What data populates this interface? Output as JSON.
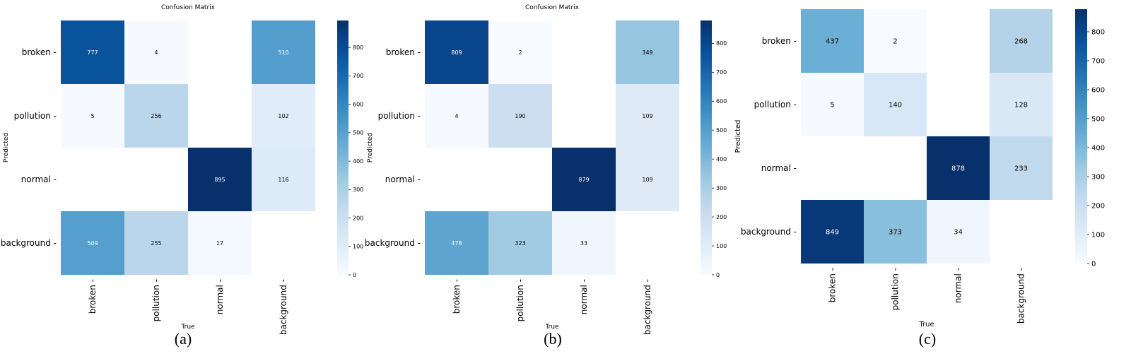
{
  "colors": {
    "low": "#f7fbff",
    "high": "#08306b",
    "empty": "#ffffff",
    "text_dark": "#000000",
    "text_light": "#ffffff"
  },
  "chart_data": [
    {
      "type": "heatmap",
      "title": "Confusion Matrix",
      "caption": "(a)",
      "xlabel": "True",
      "ylabel": "Predicted",
      "categories_x": [
        "broken",
        "pollution",
        "normal",
        "background"
      ],
      "categories_y": [
        "broken",
        "pollution",
        "normal",
        "background"
      ],
      "values": [
        [
          777,
          4,
          null,
          510
        ],
        [
          5,
          256,
          null,
          102
        ],
        [
          null,
          null,
          895,
          116
        ],
        [
          509,
          255,
          17,
          null
        ]
      ],
      "colorbar": {
        "min": 0,
        "max": 895,
        "ticks": [
          0,
          100,
          200,
          300,
          400,
          500,
          600,
          700,
          800
        ]
      }
    },
    {
      "type": "heatmap",
      "title": "Confusion Matrix",
      "caption": "(b)",
      "xlabel": "True",
      "ylabel": "Predicted",
      "categories_x": [
        "broken",
        "pollution",
        "normal",
        "background"
      ],
      "categories_y": [
        "broken",
        "pollution",
        "normal",
        "background"
      ],
      "values": [
        [
          809,
          2,
          null,
          349
        ],
        [
          4,
          190,
          null,
          109
        ],
        [
          null,
          null,
          879,
          109
        ],
        [
          478,
          323,
          33,
          null
        ]
      ],
      "colorbar": {
        "min": 0,
        "max": 879,
        "ticks": [
          0,
          100,
          200,
          300,
          400,
          500,
          600,
          700,
          800
        ]
      }
    },
    {
      "type": "heatmap",
      "title": "",
      "caption": "(c)",
      "xlabel": "True",
      "ylabel": "Predicted",
      "categories_x": [
        "broken",
        "pollution",
        "normal",
        "background"
      ],
      "categories_y": [
        "broken",
        "pollution",
        "normal",
        "background"
      ],
      "values": [
        [
          437,
          2,
          null,
          268
        ],
        [
          5,
          140,
          null,
          128
        ],
        [
          null,
          null,
          878,
          233
        ],
        [
          849,
          373,
          34,
          null
        ]
      ],
      "colorbar": {
        "min": 0,
        "max": 878,
        "ticks": [
          0,
          100,
          200,
          300,
          400,
          500,
          600,
          700,
          800
        ]
      }
    }
  ]
}
